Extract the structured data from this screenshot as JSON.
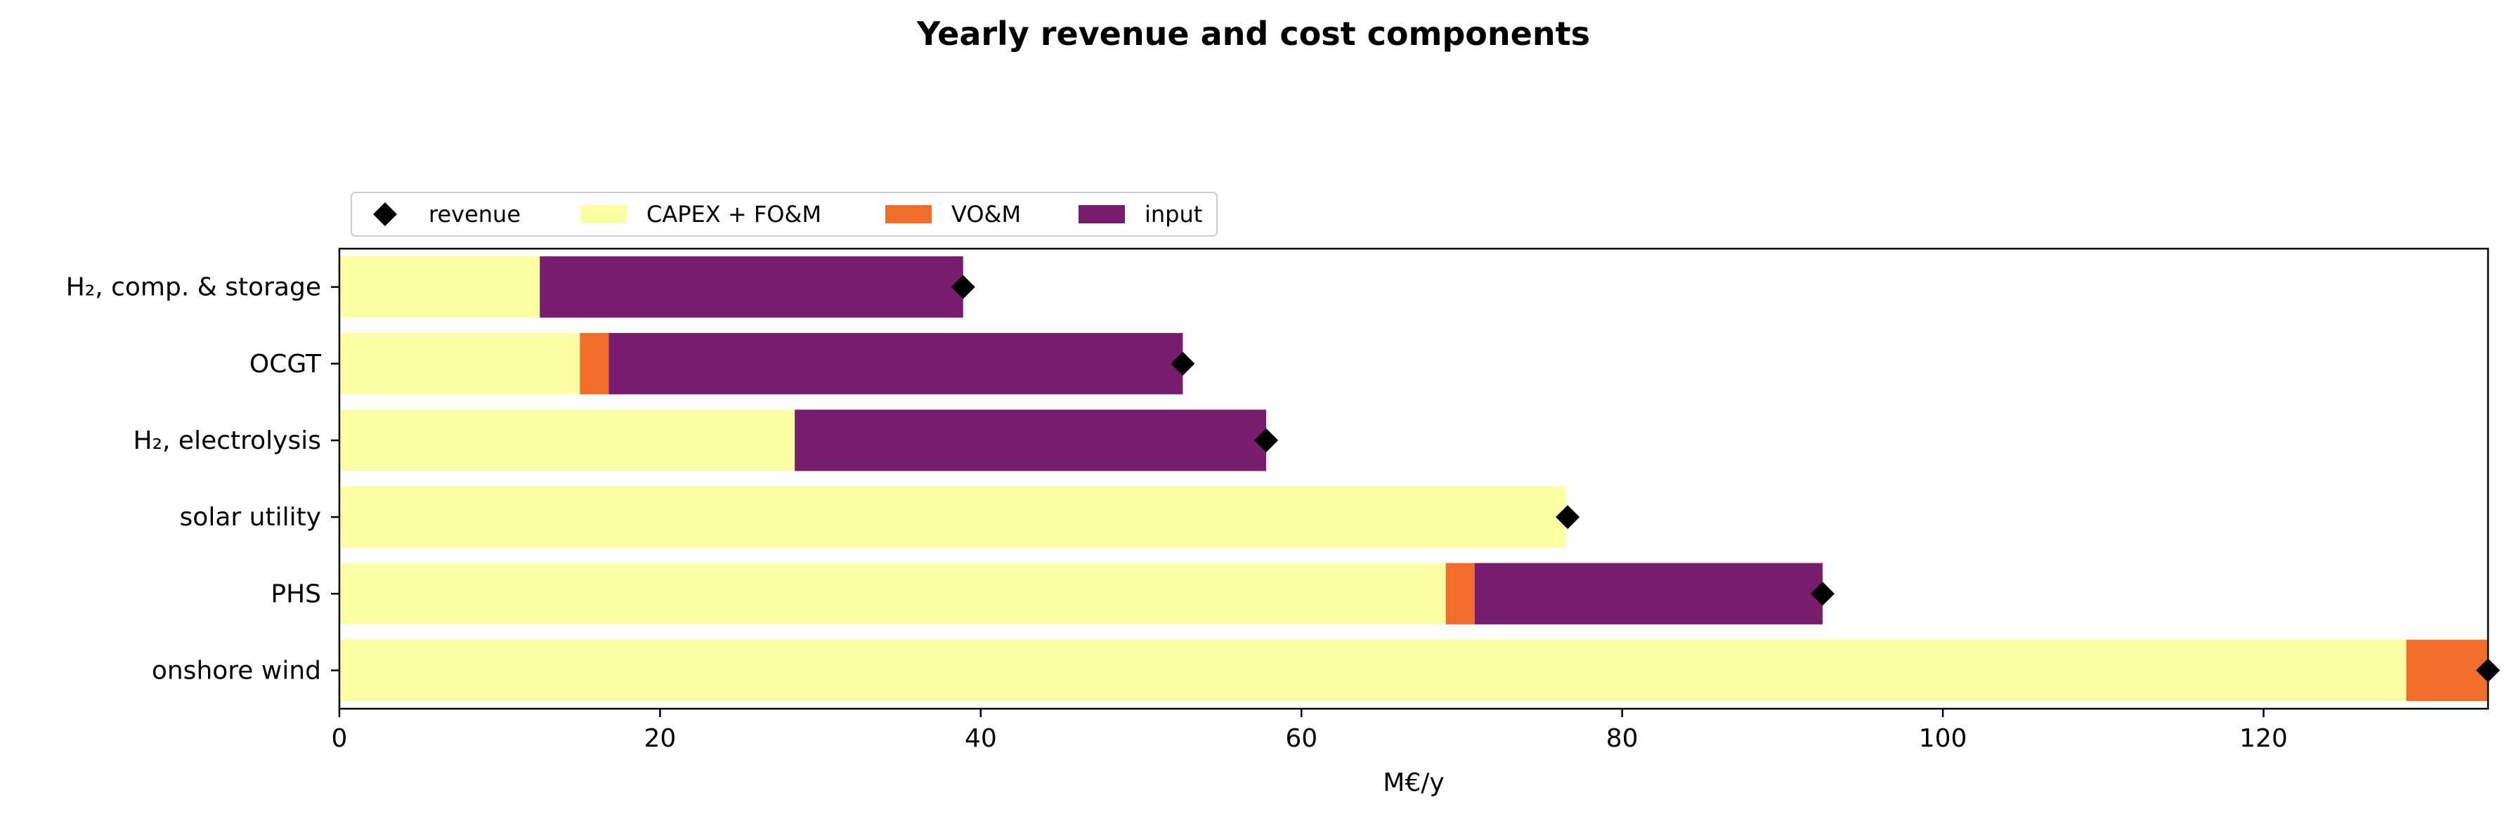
{
  "chart_data": {
    "type": "bar",
    "orientation": "horizontal",
    "stacked": true,
    "title": "Yearly revenue and cost components",
    "xlabel": "M€/y",
    "ylabel": "",
    "xlim": [
      0,
      134
    ],
    "xticks": [
      0,
      20,
      40,
      60,
      80,
      100,
      120
    ],
    "grid": false,
    "legend_position": "top-left",
    "categories": [
      "H₂, comp. & storage",
      "OCGT",
      "H₂, electrolysis",
      "solar utility",
      "PHS",
      "onshore wind"
    ],
    "series": [
      {
        "name": "CAPEX + FO&M",
        "color": "#fcffa4",
        "values": [
          12.5,
          15.0,
          28.4,
          76.5,
          69.0,
          128.9
        ]
      },
      {
        "name": "VO&M",
        "color": "#f06e2a",
        "values": [
          0.0,
          1.8,
          0.0,
          0.0,
          1.8,
          5.1
        ]
      },
      {
        "name": "input",
        "color": "#781c6d",
        "values": [
          26.4,
          35.8,
          29.4,
          0.0,
          21.7,
          0.0
        ]
      }
    ],
    "markers": {
      "name": "revenue",
      "color": "#000000",
      "shape": "diamond",
      "values": [
        38.9,
        52.6,
        57.8,
        76.6,
        92.5,
        134.0
      ]
    }
  }
}
